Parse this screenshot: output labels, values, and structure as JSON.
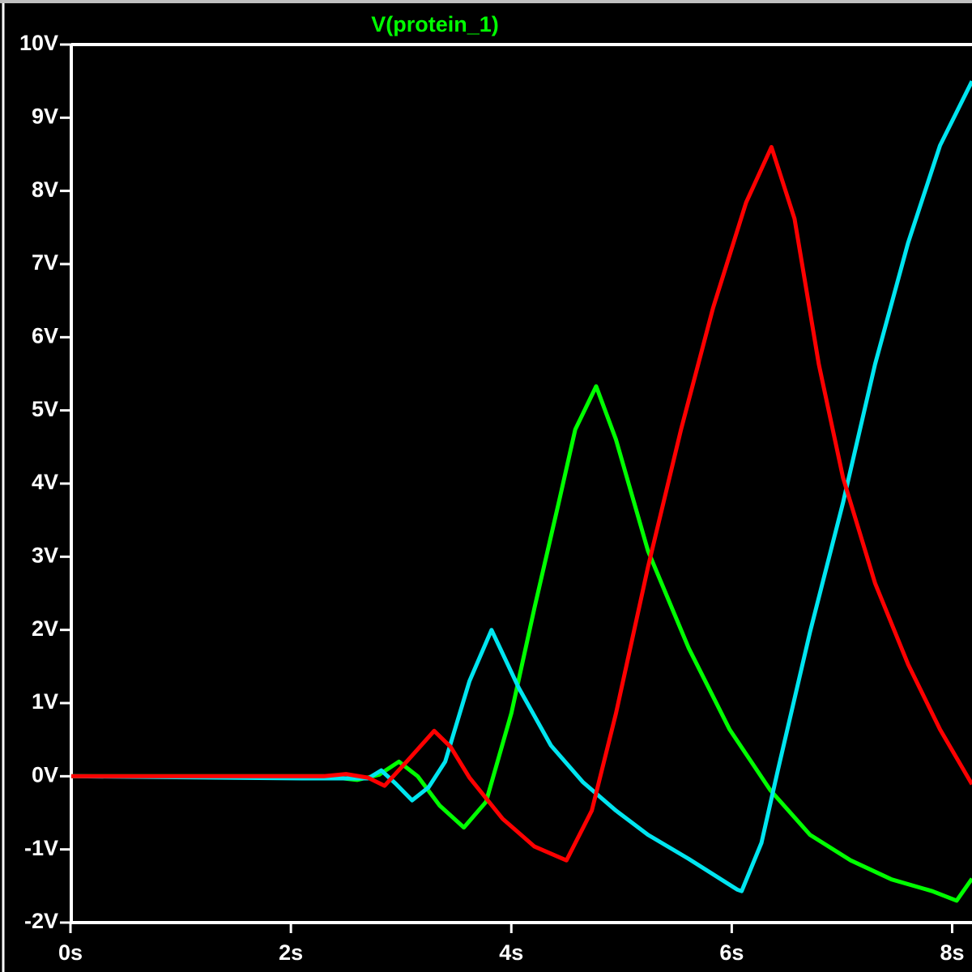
{
  "chart_data": {
    "type": "line",
    "xlim": [
      0,
      8.18
    ],
    "ylim": [
      -2,
      10
    ],
    "xticks": [
      {
        "value": 0,
        "label": "0s"
      },
      {
        "value": 2,
        "label": "2s"
      },
      {
        "value": 4,
        "label": "4s"
      },
      {
        "value": 6,
        "label": "6s"
      },
      {
        "value": 8,
        "label": "8s"
      }
    ],
    "yticks": [
      {
        "value": -2,
        "label": "-2V"
      },
      {
        "value": -1,
        "label": "-1V"
      },
      {
        "value": 0,
        "label": "0V"
      },
      {
        "value": 1,
        "label": "1V"
      },
      {
        "value": 2,
        "label": "2V"
      },
      {
        "value": 3,
        "label": "3V"
      },
      {
        "value": 4,
        "label": "4V"
      },
      {
        "value": 5,
        "label": "5V"
      },
      {
        "value": 6,
        "label": "6V"
      },
      {
        "value": 7,
        "label": "7V"
      },
      {
        "value": 8,
        "label": "8V"
      },
      {
        "value": 9,
        "label": "9V"
      },
      {
        "value": 10,
        "label": "10V"
      }
    ],
    "series": [
      {
        "name": "V(protein_1)",
        "color": "#00ff00",
        "x": [
          0,
          2.3,
          2.6,
          2.8,
          2.98,
          3.15,
          3.35,
          3.57,
          3.77,
          4.0,
          4.21,
          4.43,
          4.58,
          4.77,
          4.95,
          5.24,
          5.61,
          5.98,
          6.35,
          6.71,
          7.08,
          7.45,
          7.82,
          8.04,
          8.18
        ],
        "values": [
          0,
          0,
          -0.05,
          0.02,
          0.2,
          0.0,
          -0.4,
          -0.7,
          -0.35,
          0.86,
          2.3,
          3.74,
          4.74,
          5.33,
          4.6,
          3.08,
          1.75,
          0.64,
          -0.19,
          -0.8,
          -1.15,
          -1.41,
          -1.57,
          -1.7,
          -1.4
        ]
      },
      {
        "color": "#00e5f0",
        "x": [
          0,
          2.1,
          2.7,
          2.82,
          2.95,
          3.1,
          3.25,
          3.4,
          3.62,
          3.82,
          4.07,
          4.36,
          4.65,
          4.95,
          5.24,
          5.61,
          6.05,
          6.09,
          6.27,
          6.42,
          6.71,
          7.01,
          7.3,
          7.6,
          7.89,
          8.18
        ],
        "values": [
          0,
          -0.03,
          -0.03,
          0.08,
          -0.1,
          -0.33,
          -0.15,
          0.2,
          1.3,
          2.0,
          1.2,
          0.42,
          -0.08,
          -0.47,
          -0.8,
          -1.13,
          -1.55,
          -1.57,
          -0.91,
          0.09,
          1.97,
          3.74,
          5.63,
          7.29,
          8.62,
          9.5
        ]
      },
      {
        "color": "#ff0000",
        "x": [
          0,
          2.3,
          2.5,
          2.7,
          2.85,
          3.05,
          3.3,
          3.45,
          3.62,
          3.92,
          4.21,
          4.5,
          4.73,
          4.95,
          5.24,
          5.54,
          5.83,
          6.13,
          6.36,
          6.57,
          6.79,
          7.01,
          7.3,
          7.6,
          7.89,
          8.18
        ],
        "values": [
          0,
          0,
          0.03,
          -0.02,
          -0.13,
          0.2,
          0.62,
          0.4,
          -0.02,
          -0.58,
          -0.96,
          -1.15,
          -0.47,
          0.86,
          2.86,
          4.74,
          6.4,
          7.84,
          8.6,
          7.62,
          5.63,
          4.08,
          2.64,
          1.53,
          0.64,
          -0.11
        ]
      }
    ]
  }
}
